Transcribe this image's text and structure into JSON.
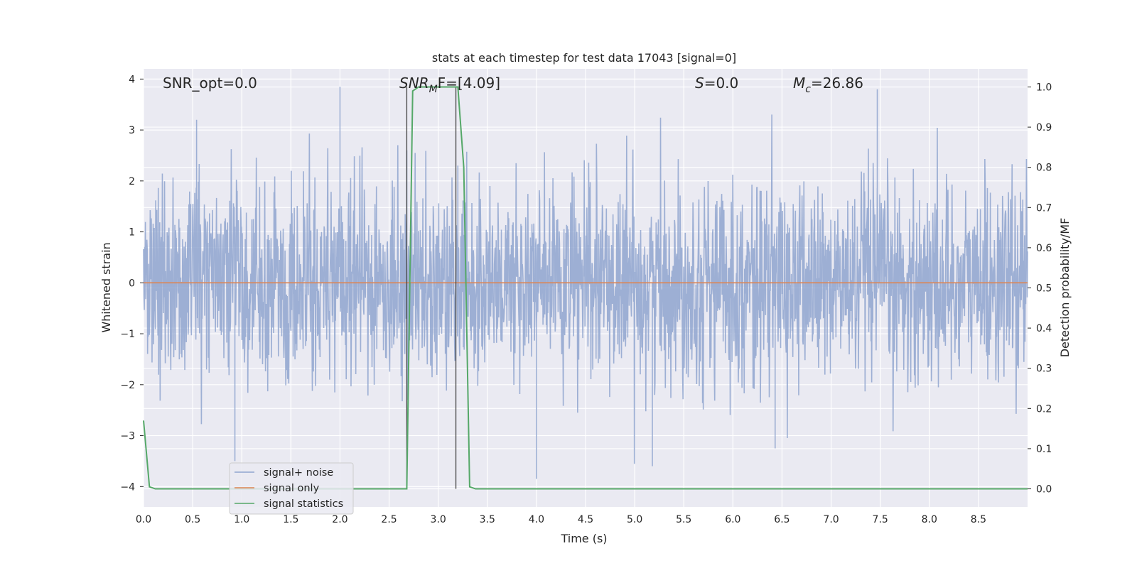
{
  "chart_data": {
    "type": "line",
    "title": "stats at each timestep for test data 17043 [signal=0]",
    "xlabel": "Time (s)",
    "ylabel": "Whitened strain",
    "y2label": "Detection probability/MF",
    "xlim": [
      0.0,
      9.0
    ],
    "ylim": [
      -4.4,
      4.2
    ],
    "y2lim": [
      -0.045,
      1.045
    ],
    "x_ticks": [
      "0.0",
      "0.5",
      "1.0",
      "1.5",
      "2.0",
      "2.5",
      "3.0",
      "3.5",
      "4.0",
      "4.5",
      "5.0",
      "5.5",
      "6.0",
      "6.5",
      "7.0",
      "7.5",
      "8.0",
      "8.5"
    ],
    "y_ticks": [
      "−4",
      "−3",
      "−2",
      "−1",
      "0",
      "1",
      "2",
      "3",
      "4"
    ],
    "y2_ticks": [
      "0.0",
      "0.1",
      "0.2",
      "0.3",
      "0.4",
      "0.5",
      "0.6",
      "0.7",
      "0.8",
      "0.9",
      "1.0"
    ],
    "grid": true,
    "legend_position": "lower-left",
    "annotations": {
      "snr_opt": "SNR_opt=0.0",
      "snr_mf_var": "SNR",
      "snr_mf_sub": "M",
      "snr_mf_rest": "F=[4.09]",
      "s_var": "S",
      "s_rest": "=0.0",
      "mc_var": "M",
      "mc_sub": "c",
      "mc_rest": "=26.86"
    },
    "series": [
      {
        "name": "signal+ noise",
        "color": "#8fa5cf",
        "axis": "left",
        "noise_std": 0.97,
        "peak_excursions": [
          [
            2.0,
            3.85
          ],
          [
            0.93,
            -3.5
          ],
          [
            4.0,
            -3.85
          ],
          [
            5.18,
            -3.6
          ],
          [
            6.43,
            -3.25
          ],
          [
            7.47,
            3.8
          ],
          [
            2.68,
            2.6
          ],
          [
            3.2,
            2.3
          ],
          [
            0.54,
            3.2
          ]
        ]
      },
      {
        "name": "signal only",
        "color": "#dd8452",
        "axis": "left",
        "x": [
          0.0,
          9.0
        ],
        "values": [
          0.0,
          0.0
        ]
      },
      {
        "name": "signal statistics",
        "color": "#55a868",
        "axis": "right",
        "x": [
          0.0,
          0.06,
          0.12,
          2.68,
          2.74,
          2.8,
          2.9,
          3.2,
          3.26,
          3.32,
          3.38,
          9.0
        ],
        "values": [
          0.17,
          0.005,
          0.0,
          0.0,
          0.99,
          1.0,
          1.0,
          1.0,
          0.8,
          0.005,
          0.0,
          0.0
        ]
      }
    ],
    "vertical_lines": [
      2.68,
      3.18
    ]
  }
}
